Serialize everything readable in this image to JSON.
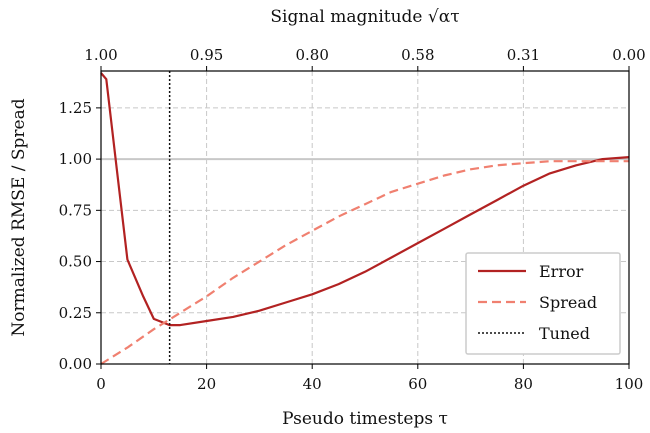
{
  "chart_data": {
    "type": "line",
    "xlabel": "Pseudo timesteps τ",
    "ylabel": "Normalized RMSE / Spread",
    "top_xlabel": "Signal magnitude √ατ",
    "xlim": [
      0,
      100
    ],
    "ylim": [
      0,
      1.43
    ],
    "xticks": [
      0,
      20,
      40,
      60,
      80,
      100
    ],
    "yticks": [
      0.0,
      0.25,
      0.5,
      0.75,
      1.0,
      1.25
    ],
    "ytick_labels": [
      "0.00",
      "0.25",
      "0.50",
      "0.75",
      "1.00",
      "1.25"
    ],
    "top_ticks": [
      {
        "x": 0,
        "label": "1.00"
      },
      {
        "x": 20,
        "label": "0.95"
      },
      {
        "x": 40,
        "label": "0.80"
      },
      {
        "x": 60,
        "label": "0.58"
      },
      {
        "x": 80,
        "label": "0.31"
      },
      {
        "x": 100,
        "label": "0.00"
      }
    ],
    "grid": true,
    "legend_position": "lower-right",
    "reference_line_y": 1.0,
    "series": [
      {
        "name": "Error",
        "color": "#b22222",
        "style": "solid",
        "x": [
          0,
          1,
          3,
          5,
          8,
          10,
          13,
          15,
          20,
          25,
          30,
          35,
          40,
          45,
          50,
          55,
          60,
          65,
          70,
          75,
          80,
          85,
          90,
          95,
          100
        ],
        "y": [
          1.42,
          1.39,
          0.95,
          0.51,
          0.33,
          0.22,
          0.19,
          0.19,
          0.21,
          0.23,
          0.26,
          0.3,
          0.34,
          0.39,
          0.45,
          0.52,
          0.59,
          0.66,
          0.73,
          0.8,
          0.87,
          0.93,
          0.97,
          1.0,
          1.01
        ]
      },
      {
        "name": "Spread",
        "color": "#f08070",
        "style": "dashed",
        "x": [
          0,
          5,
          10,
          15,
          20,
          25,
          30,
          35,
          40,
          45,
          50,
          55,
          60,
          65,
          70,
          75,
          80,
          85,
          90,
          95,
          100
        ],
        "y": [
          0.0,
          0.08,
          0.17,
          0.25,
          0.33,
          0.42,
          0.5,
          0.58,
          0.65,
          0.72,
          0.78,
          0.84,
          0.88,
          0.92,
          0.95,
          0.97,
          0.98,
          0.99,
          0.99,
          0.99,
          0.99
        ]
      },
      {
        "name": "Tuned",
        "color": "#111111",
        "style": "dotted",
        "vertical_x": 13
      }
    ]
  }
}
